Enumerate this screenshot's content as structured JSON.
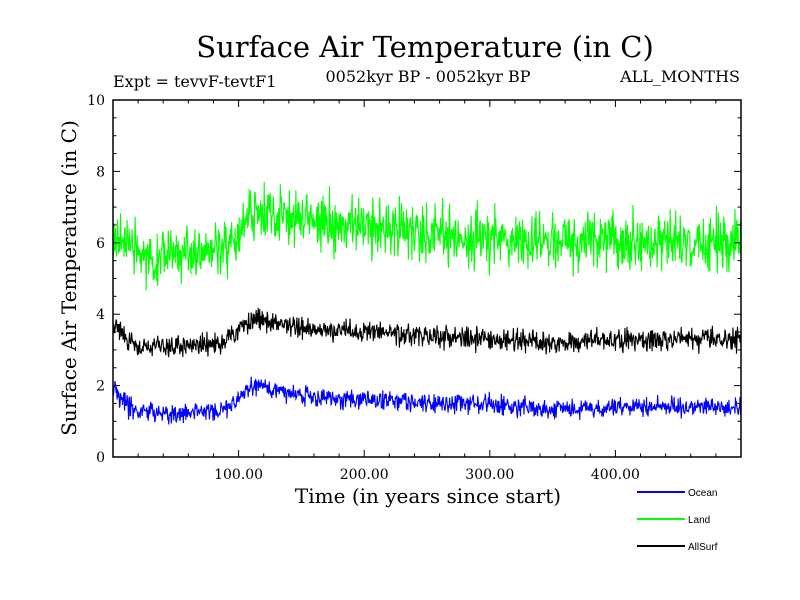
{
  "chart_data": {
    "type": "line",
    "title": "Surface Air Temperature (in C)",
    "subtitle_left": "Expt = tevvF-tevtF1",
    "subtitle_center": "0052kyr BP - 0052kyr BP",
    "subtitle_right": "ALL_MONTHS",
    "xlabel": "Time (in years since start)",
    "ylabel": "Surface Air Temperature (in C)",
    "xlim": [
      0,
      500
    ],
    "ylim": [
      0,
      10
    ],
    "x_ticks": [
      100,
      200,
      300,
      400
    ],
    "x_tick_labels": [
      "100.00",
      "200.00",
      "300.00",
      "400.00"
    ],
    "y_ticks": [
      0,
      2,
      4,
      6,
      8,
      10
    ],
    "y_tick_labels": [
      "0",
      "2",
      "4",
      "6",
      "8",
      "10"
    ],
    "legend_position": "bottom-right",
    "series": [
      {
        "name": "Land",
        "color": "#00ff00",
        "mean_by_century": [
          {
            "x": 0,
            "mean": 6.0
          },
          {
            "x": 10,
            "mean": 6.2
          },
          {
            "x": 20,
            "mean": 5.7
          },
          {
            "x": 50,
            "mean": 5.6
          },
          {
            "x": 90,
            "mean": 5.8
          },
          {
            "x": 100,
            "mean": 6.3
          },
          {
            "x": 115,
            "mean": 6.9
          },
          {
            "x": 150,
            "mean": 6.7
          },
          {
            "x": 200,
            "mean": 6.4
          },
          {
            "x": 250,
            "mean": 6.3
          },
          {
            "x": 300,
            "mean": 6.1
          },
          {
            "x": 350,
            "mean": 6.0
          },
          {
            "x": 400,
            "mean": 6.0
          },
          {
            "x": 450,
            "mean": 6.1
          },
          {
            "x": 500,
            "mean": 6.0
          }
        ],
        "noise_amplitude": 1.15
      },
      {
        "name": "AllSurf",
        "color": "#000000",
        "mean_by_century": [
          {
            "x": 0,
            "mean": 3.7
          },
          {
            "x": 10,
            "mean": 3.4
          },
          {
            "x": 20,
            "mean": 3.1
          },
          {
            "x": 50,
            "mean": 3.1
          },
          {
            "x": 90,
            "mean": 3.2
          },
          {
            "x": 100,
            "mean": 3.6
          },
          {
            "x": 115,
            "mean": 3.85
          },
          {
            "x": 150,
            "mean": 3.6
          },
          {
            "x": 200,
            "mean": 3.5
          },
          {
            "x": 250,
            "mean": 3.4
          },
          {
            "x": 300,
            "mean": 3.3
          },
          {
            "x": 350,
            "mean": 3.2
          },
          {
            "x": 400,
            "mean": 3.3
          },
          {
            "x": 450,
            "mean": 3.3
          },
          {
            "x": 500,
            "mean": 3.3
          }
        ],
        "noise_amplitude": 0.45
      },
      {
        "name": "Ocean",
        "color": "#0000ff",
        "mean_by_century": [
          {
            "x": 0,
            "mean": 1.9
          },
          {
            "x": 10,
            "mean": 1.5
          },
          {
            "x": 20,
            "mean": 1.2
          },
          {
            "x": 50,
            "mean": 1.2
          },
          {
            "x": 90,
            "mean": 1.3
          },
          {
            "x": 100,
            "mean": 1.7
          },
          {
            "x": 115,
            "mean": 2.0
          },
          {
            "x": 150,
            "mean": 1.7
          },
          {
            "x": 200,
            "mean": 1.6
          },
          {
            "x": 250,
            "mean": 1.5
          },
          {
            "x": 300,
            "mean": 1.45
          },
          {
            "x": 350,
            "mean": 1.35
          },
          {
            "x": 400,
            "mean": 1.4
          },
          {
            "x": 450,
            "mean": 1.4
          },
          {
            "x": 500,
            "mean": 1.4
          }
        ],
        "noise_amplitude": 0.4
      }
    ],
    "legend": [
      {
        "name": "Ocean",
        "color": "#0000ff"
      },
      {
        "name": "Land",
        "color": "#00ff00"
      },
      {
        "name": "AllSurf",
        "color": "#000000"
      }
    ]
  }
}
